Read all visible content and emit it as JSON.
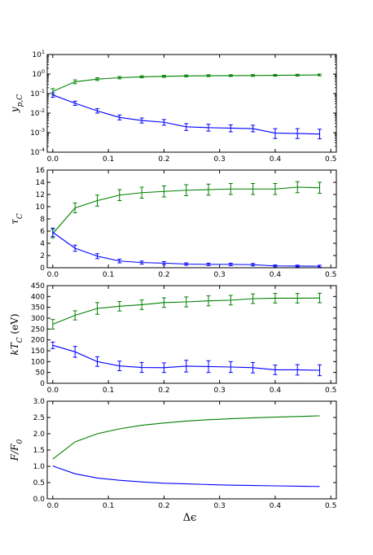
{
  "colors": {
    "blue": "#0000ff",
    "green": "#008000",
    "axis": "#000000"
  },
  "xlabel": "Δϵ",
  "chart_data": [
    {
      "type": "line",
      "ylabel": "y_p,C",
      "yscale": "log",
      "ylim": [
        0.0001,
        10
      ],
      "yticks": [
        0.0001,
        0.001,
        0.01,
        0.1,
        1,
        10
      ],
      "yticklabels": [
        "10^-4",
        "10^-3",
        "10^-2",
        "10^-1",
        "10^0",
        "10^1"
      ],
      "xlim": [
        -0.01,
        0.51
      ],
      "xticks": [
        0.0,
        0.1,
        0.2,
        0.3,
        0.4,
        0.5
      ],
      "xticklabels": [
        "0.0",
        "0.1",
        "0.2",
        "0.3",
        "0.4",
        "0.5"
      ],
      "series": [
        {
          "color": "green",
          "x": [
            0.0,
            0.04,
            0.08,
            0.12,
            0.16,
            0.2,
            0.24,
            0.28,
            0.32,
            0.36,
            0.4,
            0.44,
            0.48
          ],
          "y": [
            0.13,
            0.4,
            0.55,
            0.65,
            0.72,
            0.76,
            0.8,
            0.82,
            0.83,
            0.84,
            0.86,
            0.88,
            0.9
          ],
          "err_lo": [
            0.09,
            0.32,
            0.47,
            0.57,
            0.64,
            0.68,
            0.72,
            0.74,
            0.75,
            0.76,
            0.77,
            0.79,
            0.81
          ],
          "err_hi": [
            0.18,
            0.5,
            0.65,
            0.75,
            0.82,
            0.86,
            0.9,
            0.92,
            0.93,
            0.94,
            0.96,
            0.98,
            1.0
          ]
        },
        {
          "color": "blue",
          "x": [
            0.0,
            0.04,
            0.08,
            0.12,
            0.16,
            0.2,
            0.24,
            0.28,
            0.32,
            0.36,
            0.4,
            0.44,
            0.48
          ],
          "y": [
            0.085,
            0.032,
            0.013,
            0.006,
            0.0042,
            0.0034,
            0.002,
            0.0018,
            0.0017,
            0.0016,
            0.00095,
            0.0009,
            0.00085
          ],
          "err_lo": [
            0.065,
            0.025,
            0.01,
            0.0045,
            0.0031,
            0.0024,
            0.0013,
            0.0012,
            0.0011,
            0.0011,
            0.0005,
            0.0005,
            0.00048
          ],
          "err_hi": [
            0.11,
            0.041,
            0.017,
            0.008,
            0.0056,
            0.0047,
            0.0029,
            0.0027,
            0.0025,
            0.0024,
            0.0016,
            0.0016,
            0.0015
          ]
        }
      ]
    },
    {
      "type": "line",
      "ylabel": "τ_C",
      "ylim": [
        0,
        16
      ],
      "yticks": [
        0,
        2,
        4,
        6,
        8,
        10,
        12,
        14,
        16
      ],
      "yticklabels": [
        "0",
        "2",
        "4",
        "6",
        "8",
        "10",
        "12",
        "14",
        "16"
      ],
      "xlim": [
        -0.01,
        0.51
      ],
      "xticks": [
        0.0,
        0.1,
        0.2,
        0.3,
        0.4,
        0.5
      ],
      "xticklabels": [
        "0.0",
        "0.1",
        "0.2",
        "0.3",
        "0.4",
        "0.5"
      ],
      "series": [
        {
          "color": "green",
          "x": [
            0.0,
            0.04,
            0.08,
            0.12,
            0.16,
            0.2,
            0.24,
            0.28,
            0.32,
            0.36,
            0.4,
            0.44,
            0.48
          ],
          "y": [
            5.6,
            9.8,
            11.0,
            11.9,
            12.3,
            12.5,
            12.7,
            12.8,
            12.9,
            12.9,
            12.9,
            13.2,
            13.1
          ],
          "err_lo": [
            4.9,
            9.0,
            10.1,
            11.0,
            11.4,
            11.6,
            11.8,
            11.9,
            12.0,
            12.0,
            12.0,
            12.3,
            12.2
          ],
          "err_hi": [
            6.3,
            10.6,
            11.9,
            12.8,
            13.2,
            13.4,
            13.6,
            13.7,
            13.8,
            13.8,
            13.8,
            14.1,
            14.0
          ]
        },
        {
          "color": "blue",
          "x": [
            0.0,
            0.04,
            0.08,
            0.12,
            0.16,
            0.2,
            0.24,
            0.28,
            0.32,
            0.36,
            0.4,
            0.44,
            0.48
          ],
          "y": [
            5.8,
            3.2,
            1.9,
            1.1,
            0.85,
            0.75,
            0.6,
            0.55,
            0.55,
            0.5,
            0.3,
            0.28,
            0.25
          ],
          "err_lo": [
            5.1,
            2.7,
            1.5,
            0.8,
            0.6,
            0.5,
            0.4,
            0.35,
            0.35,
            0.3,
            0.15,
            0.13,
            0.1
          ],
          "err_hi": [
            6.5,
            3.7,
            2.3,
            1.4,
            1.1,
            1.0,
            0.8,
            0.75,
            0.75,
            0.7,
            0.45,
            0.43,
            0.4
          ]
        }
      ]
    },
    {
      "type": "line",
      "ylabel": "kT_C (eV)",
      "ylim": [
        0,
        450
      ],
      "yticks": [
        0,
        50,
        100,
        150,
        200,
        250,
        300,
        350,
        400,
        450
      ],
      "yticklabels": [
        "0",
        "50",
        "100",
        "150",
        "200",
        "250",
        "300",
        "350",
        "400",
        "450"
      ],
      "xlim": [
        -0.01,
        0.51
      ],
      "xticks": [
        0.0,
        0.1,
        0.2,
        0.3,
        0.4,
        0.5
      ],
      "xticklabels": [
        "0.0",
        "0.1",
        "0.2",
        "0.3",
        "0.4",
        "0.5"
      ],
      "series": [
        {
          "color": "green",
          "x": [
            0.0,
            0.04,
            0.08,
            0.12,
            0.16,
            0.2,
            0.24,
            0.28,
            0.32,
            0.36,
            0.4,
            0.44,
            0.48
          ],
          "y": [
            272,
            313,
            345,
            355,
            362,
            372,
            375,
            380,
            383,
            390,
            392,
            392,
            393
          ],
          "err_lo": [
            250,
            292,
            318,
            333,
            340,
            350,
            352,
            357,
            361,
            368,
            370,
            370,
            371
          ],
          "err_hi": [
            294,
            334,
            372,
            377,
            384,
            394,
            398,
            403,
            405,
            412,
            414,
            414,
            415
          ]
        },
        {
          "color": "blue",
          "x": [
            0.0,
            0.04,
            0.08,
            0.12,
            0.16,
            0.2,
            0.24,
            0.28,
            0.32,
            0.36,
            0.4,
            0.44,
            0.48
          ],
          "y": [
            175,
            145,
            100,
            80,
            73,
            72,
            79,
            77,
            75,
            72,
            62,
            62,
            60
          ],
          "err_lo": [
            160,
            120,
            78,
            58,
            50,
            50,
            52,
            50,
            50,
            48,
            40,
            38,
            35
          ],
          "err_hi": [
            190,
            170,
            122,
            102,
            96,
            94,
            106,
            104,
            100,
            96,
            84,
            86,
            85
          ]
        }
      ]
    },
    {
      "type": "line",
      "ylabel": "F/F_0",
      "ylim": [
        0,
        3
      ],
      "yticks": [
        0,
        0.5,
        1.0,
        1.5,
        2.0,
        2.5,
        3.0
      ],
      "yticklabels": [
        "0.0",
        "0.5",
        "1.0",
        "1.5",
        "2.0",
        "2.5",
        "3.0"
      ],
      "xlim": [
        -0.01,
        0.51
      ],
      "xticks": [
        0.0,
        0.1,
        0.2,
        0.3,
        0.4,
        0.5
      ],
      "xticklabels": [
        "0.0",
        "0.1",
        "0.2",
        "0.3",
        "0.4",
        "0.5"
      ],
      "series": [
        {
          "color": "green",
          "x": [
            0.0,
            0.04,
            0.08,
            0.12,
            0.16,
            0.2,
            0.24,
            0.28,
            0.32,
            0.36,
            0.4,
            0.44,
            0.48
          ],
          "y": [
            1.22,
            1.75,
            2.0,
            2.15,
            2.26,
            2.33,
            2.39,
            2.43,
            2.46,
            2.49,
            2.51,
            2.53,
            2.55
          ]
        },
        {
          "color": "blue",
          "x": [
            0.0,
            0.04,
            0.08,
            0.12,
            0.16,
            0.2,
            0.24,
            0.28,
            0.32,
            0.36,
            0.4,
            0.44,
            0.48
          ],
          "y": [
            1.01,
            0.77,
            0.64,
            0.57,
            0.52,
            0.48,
            0.46,
            0.44,
            0.42,
            0.41,
            0.4,
            0.39,
            0.38
          ]
        }
      ]
    }
  ]
}
